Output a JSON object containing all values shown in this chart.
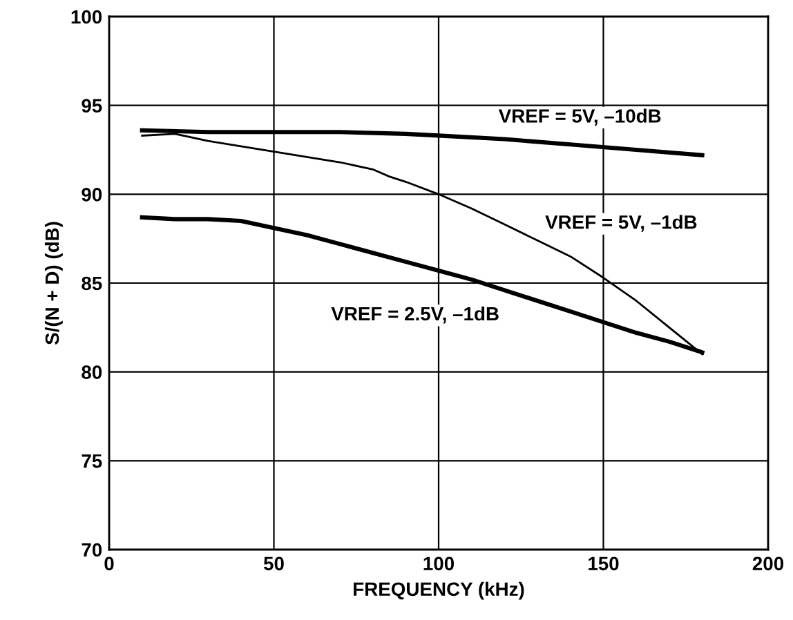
{
  "chart_data": {
    "type": "line",
    "xlabel": "FREQUENCY (kHz)",
    "ylabel": "S/(N + D) (dB)",
    "xlim": [
      0,
      200
    ],
    "ylim": [
      70,
      100
    ],
    "xticks": [
      0,
      50,
      100,
      150,
      200
    ],
    "yticks": [
      70,
      75,
      80,
      85,
      90,
      95,
      100
    ],
    "grid": true,
    "series": [
      {
        "name": "VREF = 5V, –10dB",
        "color": "#000000",
        "x": [
          10,
          30,
          50,
          70,
          90,
          100,
          120,
          140,
          160,
          180
        ],
        "values": [
          93.6,
          93.5,
          93.5,
          93.5,
          93.4,
          93.3,
          93.1,
          92.8,
          92.5,
          92.2
        ]
      },
      {
        "name": "VREF = 5V, –1dB",
        "color": "#000000",
        "x": [
          10,
          20,
          30,
          40,
          50,
          60,
          70,
          80,
          85,
          90,
          100,
          110,
          120,
          130,
          140,
          150,
          160,
          170,
          180
        ],
        "values": [
          93.3,
          93.4,
          93.0,
          92.7,
          92.4,
          92.1,
          91.8,
          91.4,
          91.0,
          90.7,
          90.0,
          89.2,
          88.3,
          87.4,
          86.5,
          85.3,
          84.0,
          82.5,
          81.0
        ]
      },
      {
        "name": "VREF = 2.5V, –1dB",
        "color": "#000000",
        "x": [
          10,
          20,
          30,
          40,
          50,
          60,
          70,
          80,
          90,
          100,
          110,
          120,
          130,
          140,
          150,
          160,
          170,
          180
        ],
        "values": [
          88.7,
          88.6,
          88.6,
          88.5,
          88.1,
          87.7,
          87.2,
          86.7,
          86.2,
          85.7,
          85.2,
          84.6,
          84.0,
          83.4,
          82.8,
          82.2,
          81.7,
          81.1
        ]
      }
    ]
  }
}
